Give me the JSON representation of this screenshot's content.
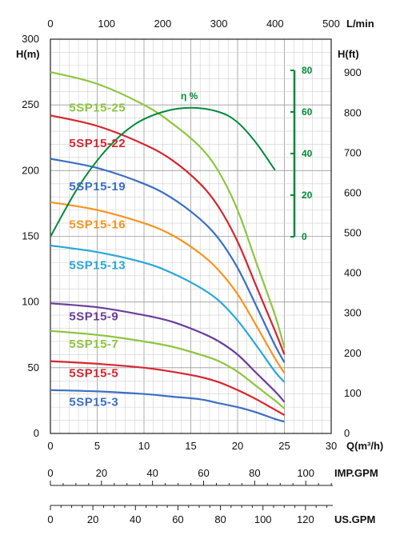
{
  "chart_data": {
    "type": "line",
    "axes": {
      "left_unit": "H(m)",
      "right_unit": "H(ft)",
      "bottom_unit": "Q(m³/h)",
      "top_unit": "L/min",
      "imp_unit": "IMP.GPM",
      "us_unit": "US.GPM",
      "efficiency_label": "η %",
      "q_range": [
        0,
        30
      ],
      "h_range": [
        0,
        300
      ],
      "q_ticks": [
        "0",
        "5",
        "10",
        "15",
        "20",
        "25",
        "30"
      ],
      "h_ticks": [
        "0",
        "50",
        "100",
        "150",
        "200",
        "250",
        "300"
      ],
      "ft_ticks": [
        "0",
        "100",
        "200",
        "300",
        "400",
        "500",
        "600",
        "700",
        "800",
        "900"
      ],
      "lmin_ticks": [
        "0",
        "100",
        "200",
        "300",
        "400",
        "500"
      ],
      "imp_ticks": [
        "0",
        "20",
        "40",
        "60",
        "80",
        "100"
      ],
      "us_ticks": [
        "0",
        "20",
        "40",
        "60",
        "80",
        "100",
        "120"
      ],
      "eff_ticks": [
        "0",
        "20",
        "40",
        "60",
        "80"
      ],
      "grid": true
    },
    "series": [
      {
        "name": "5SP15-25",
        "color": "#8dc63f",
        "label_q": 2.0,
        "label_h": 245,
        "points": [
          [
            0,
            275
          ],
          [
            5,
            266
          ],
          [
            10,
            250
          ],
          [
            13,
            236
          ],
          [
            16,
            218
          ],
          [
            18,
            199
          ],
          [
            20,
            170
          ],
          [
            22,
            130
          ],
          [
            24,
            90
          ],
          [
            25,
            65
          ]
        ]
      },
      {
        "name": "5SP15-22",
        "color": "#d6262e",
        "label_q": 2.0,
        "label_h": 218,
        "points": [
          [
            0,
            242
          ],
          [
            5,
            234
          ],
          [
            10,
            220
          ],
          [
            13,
            208
          ],
          [
            16,
            190
          ],
          [
            18,
            172
          ],
          [
            20,
            146
          ],
          [
            22,
            112
          ],
          [
            24,
            78
          ],
          [
            25,
            60
          ]
        ]
      },
      {
        "name": "5SP15-19",
        "color": "#3a6fc4",
        "label_q": 2.0,
        "label_h": 185,
        "points": [
          [
            0,
            209
          ],
          [
            5,
            202
          ],
          [
            10,
            190
          ],
          [
            13,
            179
          ],
          [
            16,
            163
          ],
          [
            18,
            148
          ],
          [
            20,
            126
          ],
          [
            22,
            97
          ],
          [
            24,
            67
          ],
          [
            25,
            54
          ]
        ]
      },
      {
        "name": "5SP15-16",
        "color": "#f7941d",
        "label_q": 2.0,
        "label_h": 156,
        "points": [
          [
            0,
            176
          ],
          [
            5,
            170
          ],
          [
            10,
            160
          ],
          [
            13,
            151
          ],
          [
            16,
            137
          ],
          [
            18,
            124
          ],
          [
            20,
            106
          ],
          [
            22,
            82
          ],
          [
            24,
            57
          ],
          [
            25,
            46
          ]
        ]
      },
      {
        "name": "5SP15-13",
        "color": "#29a8d8",
        "label_q": 2.0,
        "label_h": 125,
        "points": [
          [
            0,
            143
          ],
          [
            5,
            138
          ],
          [
            10,
            130
          ],
          [
            13,
            122
          ],
          [
            16,
            111
          ],
          [
            18,
            101
          ],
          [
            20,
            86
          ],
          [
            22,
            67
          ],
          [
            24,
            47
          ],
          [
            25,
            39
          ]
        ]
      },
      {
        "name": "5SP15-9",
        "color": "#6a3d9a",
        "label_q": 2.0,
        "label_h": 86,
        "points": [
          [
            0,
            99
          ],
          [
            5,
            96
          ],
          [
            10,
            90
          ],
          [
            13,
            85
          ],
          [
            16,
            77
          ],
          [
            18,
            70
          ],
          [
            20,
            60
          ],
          [
            22,
            46
          ],
          [
            24,
            32
          ],
          [
            25,
            24
          ]
        ]
      },
      {
        "name": "5SP15-7",
        "color": "#8dc63f",
        "label_q": 2.0,
        "label_h": 65,
        "points": [
          [
            0,
            78
          ],
          [
            5,
            75
          ],
          [
            10,
            70
          ],
          [
            13,
            66
          ],
          [
            16,
            60
          ],
          [
            18,
            55
          ],
          [
            20,
            47
          ],
          [
            22,
            36
          ],
          [
            24,
            25
          ],
          [
            25,
            19
          ]
        ]
      },
      {
        "name": "5SP15-5",
        "color": "#d6262e",
        "label_q": 2.0,
        "label_h": 43,
        "points": [
          [
            0,
            55
          ],
          [
            5,
            53
          ],
          [
            10,
            50
          ],
          [
            13,
            47
          ],
          [
            16,
            43
          ],
          [
            18,
            39
          ],
          [
            20,
            33
          ],
          [
            22,
            26
          ],
          [
            24,
            18
          ],
          [
            25,
            14
          ]
        ]
      },
      {
        "name": "5SP15-3",
        "color": "#3a6fc4",
        "label_q": 2.0,
        "label_h": 21,
        "points": [
          [
            0,
            33
          ],
          [
            5,
            32
          ],
          [
            10,
            30
          ],
          [
            13,
            28
          ],
          [
            16,
            26
          ],
          [
            18,
            23
          ],
          [
            20,
            20
          ],
          [
            22,
            16
          ],
          [
            24,
            11
          ],
          [
            25,
            9
          ]
        ]
      }
    ],
    "efficiency": {
      "color": "#008a3a",
      "points": [
        [
          0,
          0
        ],
        [
          3,
          24
        ],
        [
          6,
          42
        ],
        [
          9,
          54
        ],
        [
          12,
          60
        ],
        [
          15,
          62
        ],
        [
          18,
          60
        ],
        [
          20,
          55
        ],
        [
          22,
          45
        ],
        [
          24,
          32
        ]
      ]
    }
  }
}
